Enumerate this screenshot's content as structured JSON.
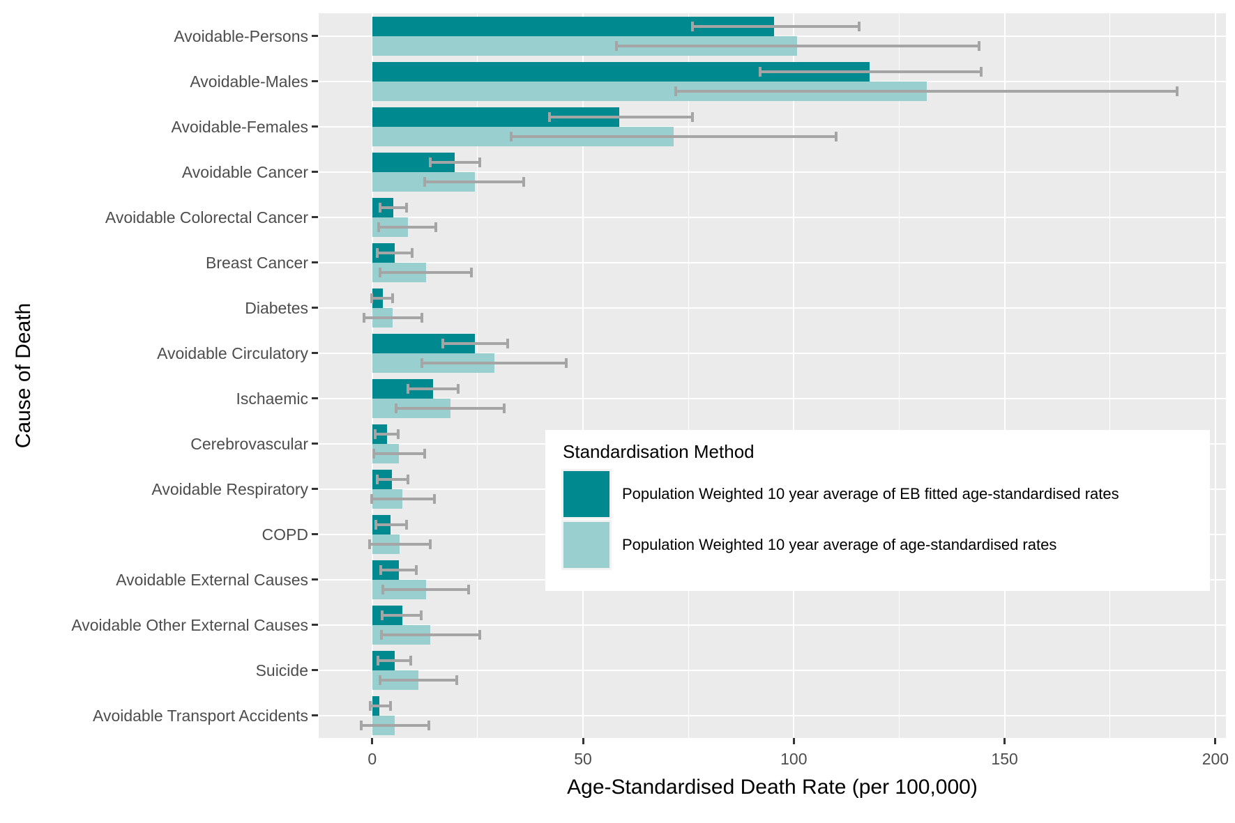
{
  "chart_data": {
    "type": "bar",
    "orientation": "horizontal",
    "xlabel": "Age-Standardised Death Rate (per 100,000)",
    "ylabel": "Cause of Death",
    "xlim": [
      -12.7,
      202.5
    ],
    "x_ticks": [
      0,
      50,
      100,
      150,
      200
    ],
    "x_minor_ticks": [
      25,
      75,
      125,
      175
    ],
    "grid": true,
    "legend": {
      "title": "Standardisation Method",
      "position": "inside-right"
    },
    "categories": [
      "Avoidable-Persons",
      "Avoidable-Males",
      "Avoidable-Females",
      "Avoidable Cancer",
      "Avoidable Colorectal Cancer",
      "Breast Cancer",
      "Diabetes",
      "Avoidable Circulatory",
      "Ischaemic",
      "Cerebrovascular",
      "Avoidable Respiratory",
      "COPD",
      "Avoidable External Causes",
      "Avoidable Other External Causes",
      "Suicide",
      "Avoidable Transport Accidents"
    ],
    "series": [
      {
        "name": "Population Weighted 10 year average of EB fitted age-standardised rates",
        "color": "#00898F",
        "values": [
          95.3,
          118.0,
          58.6,
          19.6,
          5.0,
          5.3,
          2.5,
          24.4,
          14.4,
          3.5,
          4.7,
          4.4,
          6.3,
          7.1,
          5.3,
          1.7
        ],
        "error_low": [
          76.0,
          92.0,
          42.0,
          13.7,
          1.8,
          1.2,
          -0.1,
          16.7,
          8.4,
          0.7,
          1.2,
          0.9,
          2.1,
          2.4,
          1.4,
          -0.5
        ],
        "error_high": [
          115.5,
          144.5,
          76.0,
          25.5,
          8.1,
          9.4,
          4.9,
          32.1,
          20.3,
          6.1,
          8.4,
          8.1,
          10.4,
          11.6,
          9.1,
          4.3
        ]
      },
      {
        "name": "Population Weighted 10 year average of age-standardised rates",
        "color": "#9ACFD0",
        "values": [
          100.8,
          131.5,
          71.5,
          24.3,
          8.4,
          12.7,
          4.9,
          29.0,
          18.6,
          6.4,
          7.2,
          6.5,
          12.7,
          13.8,
          10.9,
          5.4
        ],
        "error_low": [
          58.0,
          72.0,
          33.0,
          12.5,
          1.5,
          1.8,
          -1.9,
          11.7,
          5.7,
          0.3,
          -0.2,
          -0.7,
          2.5,
          2.2,
          1.9,
          -2.6
        ],
        "error_high": [
          144.0,
          191.0,
          110.0,
          36.0,
          15.1,
          23.6,
          11.7,
          46.1,
          31.3,
          12.5,
          14.7,
          13.7,
          22.9,
          25.5,
          20.0,
          13.5
        ]
      }
    ],
    "colors": {
      "panel_background": "#EBEBEB",
      "gridline": "#FFFFFF",
      "error_bar": "#A5A5A5",
      "axis_text": "#4D4D4D",
      "axis_title": "#000000",
      "legend_key_background": "#F2F2F2"
    }
  }
}
